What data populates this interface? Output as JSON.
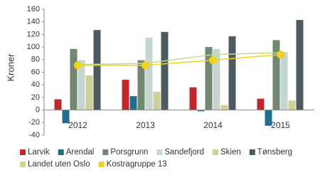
{
  "chart_data": {
    "type": "bar",
    "y_label": "Kroner",
    "categories": [
      "2012",
      "2013",
      "2014",
      "2015"
    ],
    "series": [
      {
        "name": "Larvik",
        "color": "#c0282d",
        "values": [
          17,
          48,
          36,
          18
        ]
      },
      {
        "name": "Arendal",
        "color": "#1f6e8c",
        "values": [
          -21,
          22,
          -2,
          -25
        ]
      },
      {
        "name": "Porsgrunn",
        "color": "#71876f",
        "values": [
          97,
          79,
          100,
          111
        ]
      },
      {
        "name": "Sandefjord",
        "color": "#c5d5d0",
        "values": [
          79,
          115,
          97,
          92
        ]
      },
      {
        "name": "Skien",
        "color": "#cfcf99",
        "values": [
          55,
          29,
          8,
          15
        ]
      },
      {
        "name": "Tønsberg",
        "color": "#4d5a5f",
        "values": [
          127,
          124,
          117,
          143
        ]
      },
      {
        "name": "Landet uten Oslo",
        "type": "line",
        "color": "#c8d88a",
        "values": [
          72,
          74,
          88,
          91
        ]
      },
      {
        "name": "Kostragruppe 13",
        "type": "line",
        "markers": true,
        "color": "#f2d21a",
        "values": [
          71,
          71,
          79,
          88
        ]
      }
    ],
    "ylim": [
      -40,
      160
    ],
    "yticks": [
      -40,
      -20,
      0,
      20,
      40,
      60,
      80,
      100,
      120,
      140,
      160
    ]
  }
}
